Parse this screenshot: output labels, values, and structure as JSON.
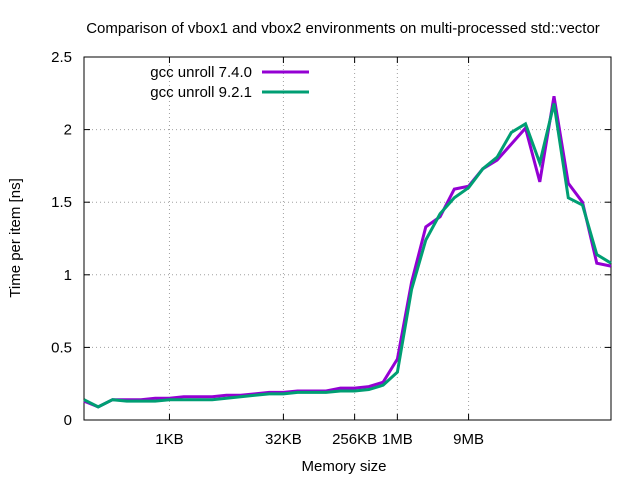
{
  "chart_data": {
    "type": "line",
    "title": "Comparison of vbox1 and vbox2 environments on multi-processed std::vector",
    "xlabel": "Memory size",
    "ylabel": "Time per item [ns]",
    "ylim": [
      0,
      2.5
    ],
    "y_ticks": [
      "0",
      "0.5",
      "1",
      "1.5",
      "2",
      "2.5"
    ],
    "x_ticks": [
      "1KB",
      "32KB",
      "256KB",
      "1MB",
      "9MB"
    ],
    "grid": true,
    "legend_position": "top-left",
    "series": [
      {
        "name": "gcc unroll 7.4.0",
        "color": "#9400d3",
        "x": [
          0,
          1,
          2,
          3,
          4,
          5,
          6,
          7,
          8,
          9,
          10,
          11,
          12,
          13,
          14,
          15,
          16,
          17,
          18,
          19,
          20,
          21,
          22,
          23,
          24,
          25,
          26,
          27,
          28,
          29,
          30,
          31,
          32,
          33,
          34,
          35,
          36,
          37
        ],
        "values": [
          0.13,
          0.09,
          0.14,
          0.14,
          0.14,
          0.15,
          0.15,
          0.16,
          0.16,
          0.16,
          0.17,
          0.17,
          0.18,
          0.19,
          0.19,
          0.2,
          0.2,
          0.2,
          0.22,
          0.22,
          0.23,
          0.26,
          0.42,
          0.95,
          1.33,
          1.4,
          1.59,
          1.61,
          1.73,
          1.79,
          1.9,
          2.01,
          1.64,
          2.23,
          1.63,
          1.5,
          1.08,
          1.06
        ]
      },
      {
        "name": "gcc unroll 9.2.1",
        "color": "#009e73",
        "x": [
          0,
          1,
          2,
          3,
          4,
          5,
          6,
          7,
          8,
          9,
          10,
          11,
          12,
          13,
          14,
          15,
          16,
          17,
          18,
          19,
          20,
          21,
          22,
          23,
          24,
          25,
          26,
          27,
          28,
          29,
          30,
          31,
          32,
          33,
          34,
          35,
          36,
          37
        ],
        "values": [
          0.14,
          0.09,
          0.14,
          0.13,
          0.13,
          0.13,
          0.14,
          0.14,
          0.14,
          0.14,
          0.15,
          0.16,
          0.17,
          0.18,
          0.18,
          0.19,
          0.19,
          0.19,
          0.2,
          0.2,
          0.21,
          0.24,
          0.33,
          0.9,
          1.24,
          1.42,
          1.53,
          1.6,
          1.73,
          1.81,
          1.98,
          2.04,
          1.77,
          2.18,
          1.53,
          1.48,
          1.14,
          1.08
        ]
      }
    ]
  }
}
